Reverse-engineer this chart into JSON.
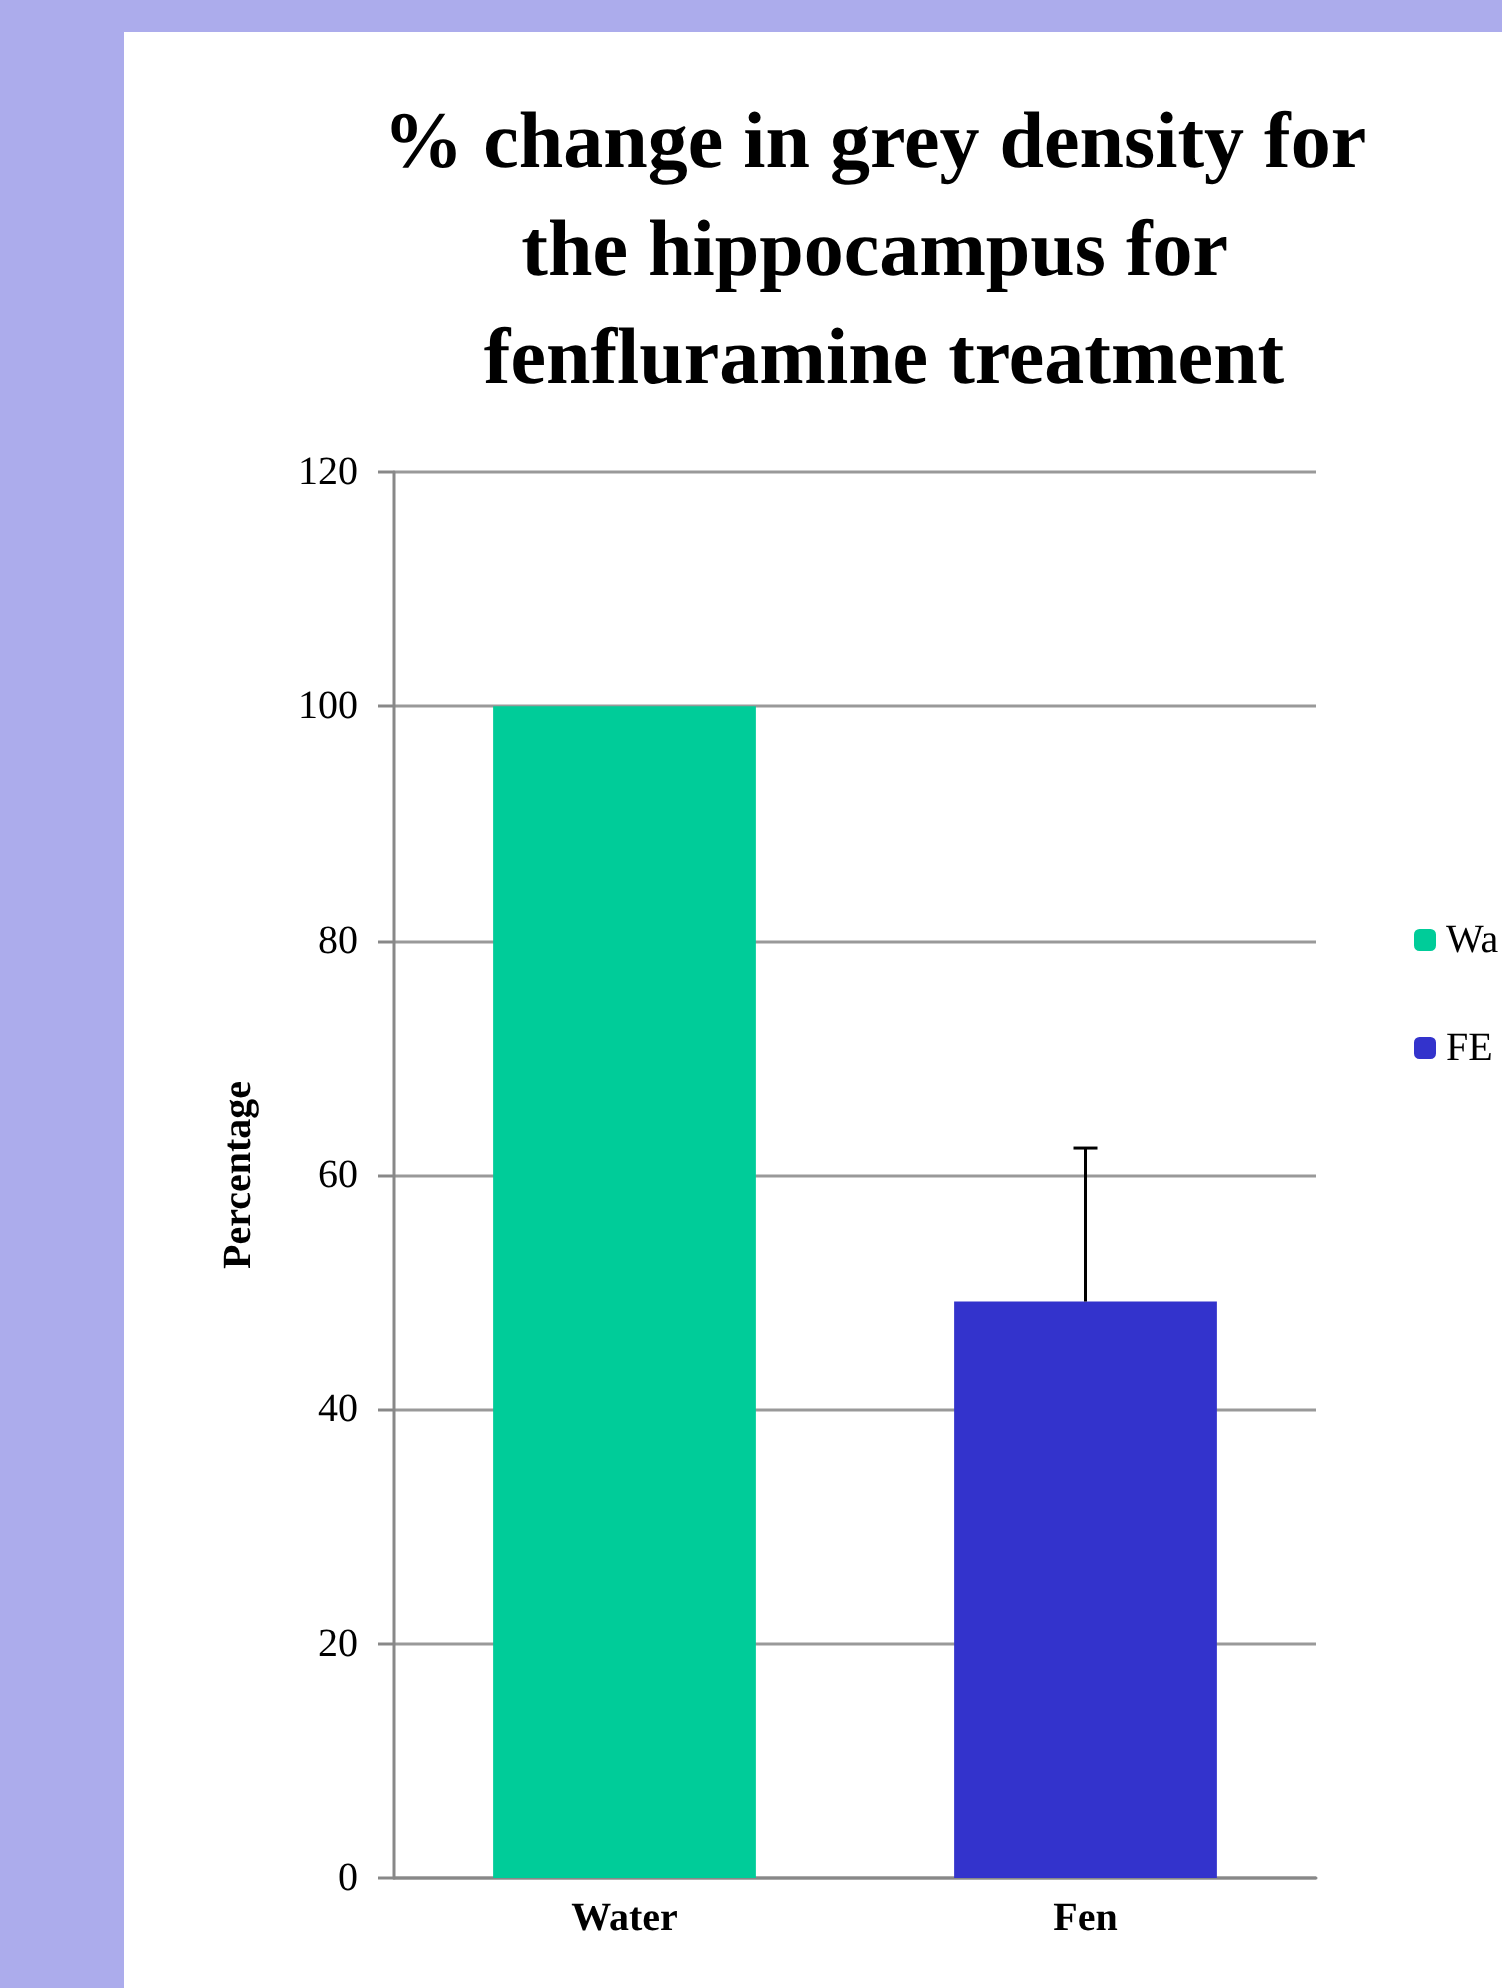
{
  "chart_data": {
    "type": "bar",
    "title": "% change in grey density for the hippocampus for fenfluramine treatment",
    "ylabel": "Percentage",
    "categories": [
      "Water",
      "Fen"
    ],
    "series": [
      {
        "name": "Wa",
        "color": "#00cc99",
        "values": [
          100,
          null
        ]
      },
      {
        "name": "FE",
        "color": "#3333cc",
        "values": [
          null,
          49.2
        ],
        "errors": [
          null,
          [
            49.2,
            62.3
          ]
        ]
      }
    ],
    "ylim": [
      0,
      120
    ],
    "yticks": [
      0,
      20,
      40,
      60,
      80,
      100,
      120
    ],
    "grid": "y",
    "legend": "right"
  }
}
